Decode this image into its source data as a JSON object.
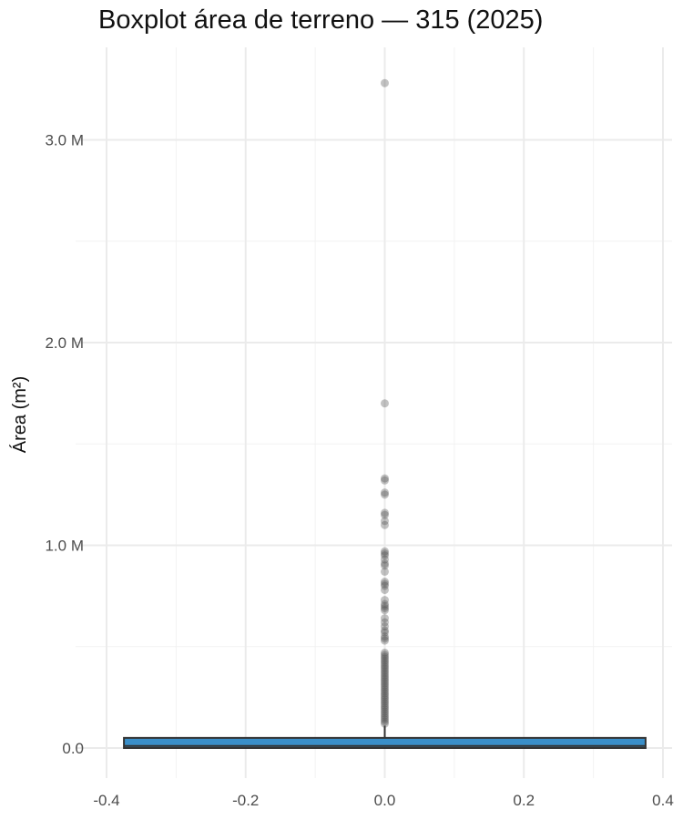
{
  "chart_data": {
    "type": "boxplot",
    "title": "Boxplot área de terreno — 315 (2025)",
    "xlabel": "",
    "ylabel": "Área (m²)",
    "xlim": [
      -0.4,
      0.4
    ],
    "ylim": [
      -0.15,
      3.4
    ],
    "y_unit": "millions of m²",
    "x_ticks": [
      -0.4,
      -0.2,
      0.0,
      0.2,
      0.4
    ],
    "x_tick_labels": [
      "-0.4",
      "-0.2",
      "0.0",
      "0.2",
      "0.4"
    ],
    "y_ticks": [
      0,
      1,
      2,
      3
    ],
    "y_tick_labels": [
      "0.0",
      "1.0 M",
      "2.0 M",
      "3.0 M"
    ],
    "grid": true,
    "box": {
      "x": 0.0,
      "width": 0.75,
      "q1": 0.0,
      "median": 0.01,
      "q3": 0.05,
      "whisker_low": 0.0,
      "whisker_high": 0.11,
      "fill_color": "#3a8fc9",
      "edge_color": "#333333"
    },
    "outliers": [
      3.28,
      1.7,
      1.33,
      1.32,
      1.26,
      1.25,
      1.16,
      1.15,
      1.12,
      1.1,
      0.97,
      0.96,
      0.95,
      0.93,
      0.91,
      0.9,
      0.87,
      0.82,
      0.81,
      0.8,
      0.78,
      0.73,
      0.71,
      0.7,
      0.69,
      0.68,
      0.64,
      0.62,
      0.6,
      0.58,
      0.57,
      0.55,
      0.54,
      0.53,
      0.47,
      0.46,
      0.45,
      0.44,
      0.43,
      0.42,
      0.41,
      0.4,
      0.39,
      0.38,
      0.37,
      0.36,
      0.35,
      0.34,
      0.33,
      0.32,
      0.31,
      0.3,
      0.29,
      0.28,
      0.27,
      0.26,
      0.25,
      0.24,
      0.23,
      0.22,
      0.21,
      0.2,
      0.19,
      0.18,
      0.17,
      0.16,
      0.15,
      0.14,
      0.13,
      0.12
    ],
    "outlier_color": "#444444"
  }
}
